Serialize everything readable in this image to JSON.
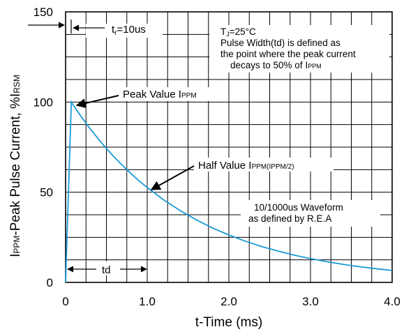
{
  "chart_data": {
    "type": "line",
    "xlabel": "t-Time (ms)",
    "ylabel_main": "I",
    "ylabel_sub": "PPM",
    "ylabel_rest": "-Peak Pulse Current, %I",
    "ylabel_sub2": "RSM",
    "xlim": [
      0,
      4.0
    ],
    "ylim": [
      0,
      150
    ],
    "x_ticks": [
      {
        "value": 0,
        "label": "0"
      },
      {
        "value": 1.0,
        "label": "1.0"
      },
      {
        "value": 2.0,
        "label": "2.0"
      },
      {
        "value": 3.0,
        "label": "3.0"
      },
      {
        "value": 4.0,
        "label": "4.0"
      }
    ],
    "y_ticks": [
      {
        "value": 0,
        "label": "0"
      },
      {
        "value": 50,
        "label": "50"
      },
      {
        "value": 100,
        "label": "100"
      },
      {
        "value": 150,
        "label": "150"
      }
    ],
    "grid": true,
    "grid_x_step": 0.25,
    "grid_y_step": 12.5,
    "series": [
      {
        "color": "#1a9ad6",
        "x": [
          0,
          0.07,
          0.1,
          0.2,
          0.3,
          0.4,
          0.5,
          0.6,
          0.7,
          0.8,
          0.9,
          1.0,
          1.2,
          1.4,
          1.6,
          1.8,
          2.0,
          2.2,
          2.4,
          2.6,
          2.8,
          3.0,
          3.2,
          3.4,
          3.6,
          3.8,
          4.0
        ],
        "y": [
          0,
          100,
          97.9,
          91.3,
          85.2,
          79.6,
          74.2,
          69.3,
          64.7,
          60.4,
          56.3,
          52.6,
          45.8,
          39.9,
          34.7,
          30.2,
          26.3,
          22.9,
          19.9,
          17.4,
          15.1,
          13.2,
          11.5,
          10.0,
          8.7,
          7.6,
          6.6
        ]
      }
    ],
    "annotations": {
      "tr": {
        "prefix": "t",
        "sub": "r",
        "suffix": "=10us"
      },
      "conditions": {
        "line1_prefix": "T",
        "line1_sub": "J",
        "line1_suffix": "=25°C",
        "line2": "Pulse Width(td) is defined as",
        "line3": "the point where the peak current",
        "line4_prefix": "decays to 50% of I",
        "line4_sub": "PPM"
      },
      "peak": {
        "prefix": "Peak Value I",
        "sub": "PPM"
      },
      "half": {
        "prefix": "Half Value I",
        "sub": "PPM(IPPM/2)"
      },
      "waveform": {
        "line1": "10/1000us Waveform",
        "line2": "as defined by R.E.A"
      },
      "td": "td"
    }
  }
}
